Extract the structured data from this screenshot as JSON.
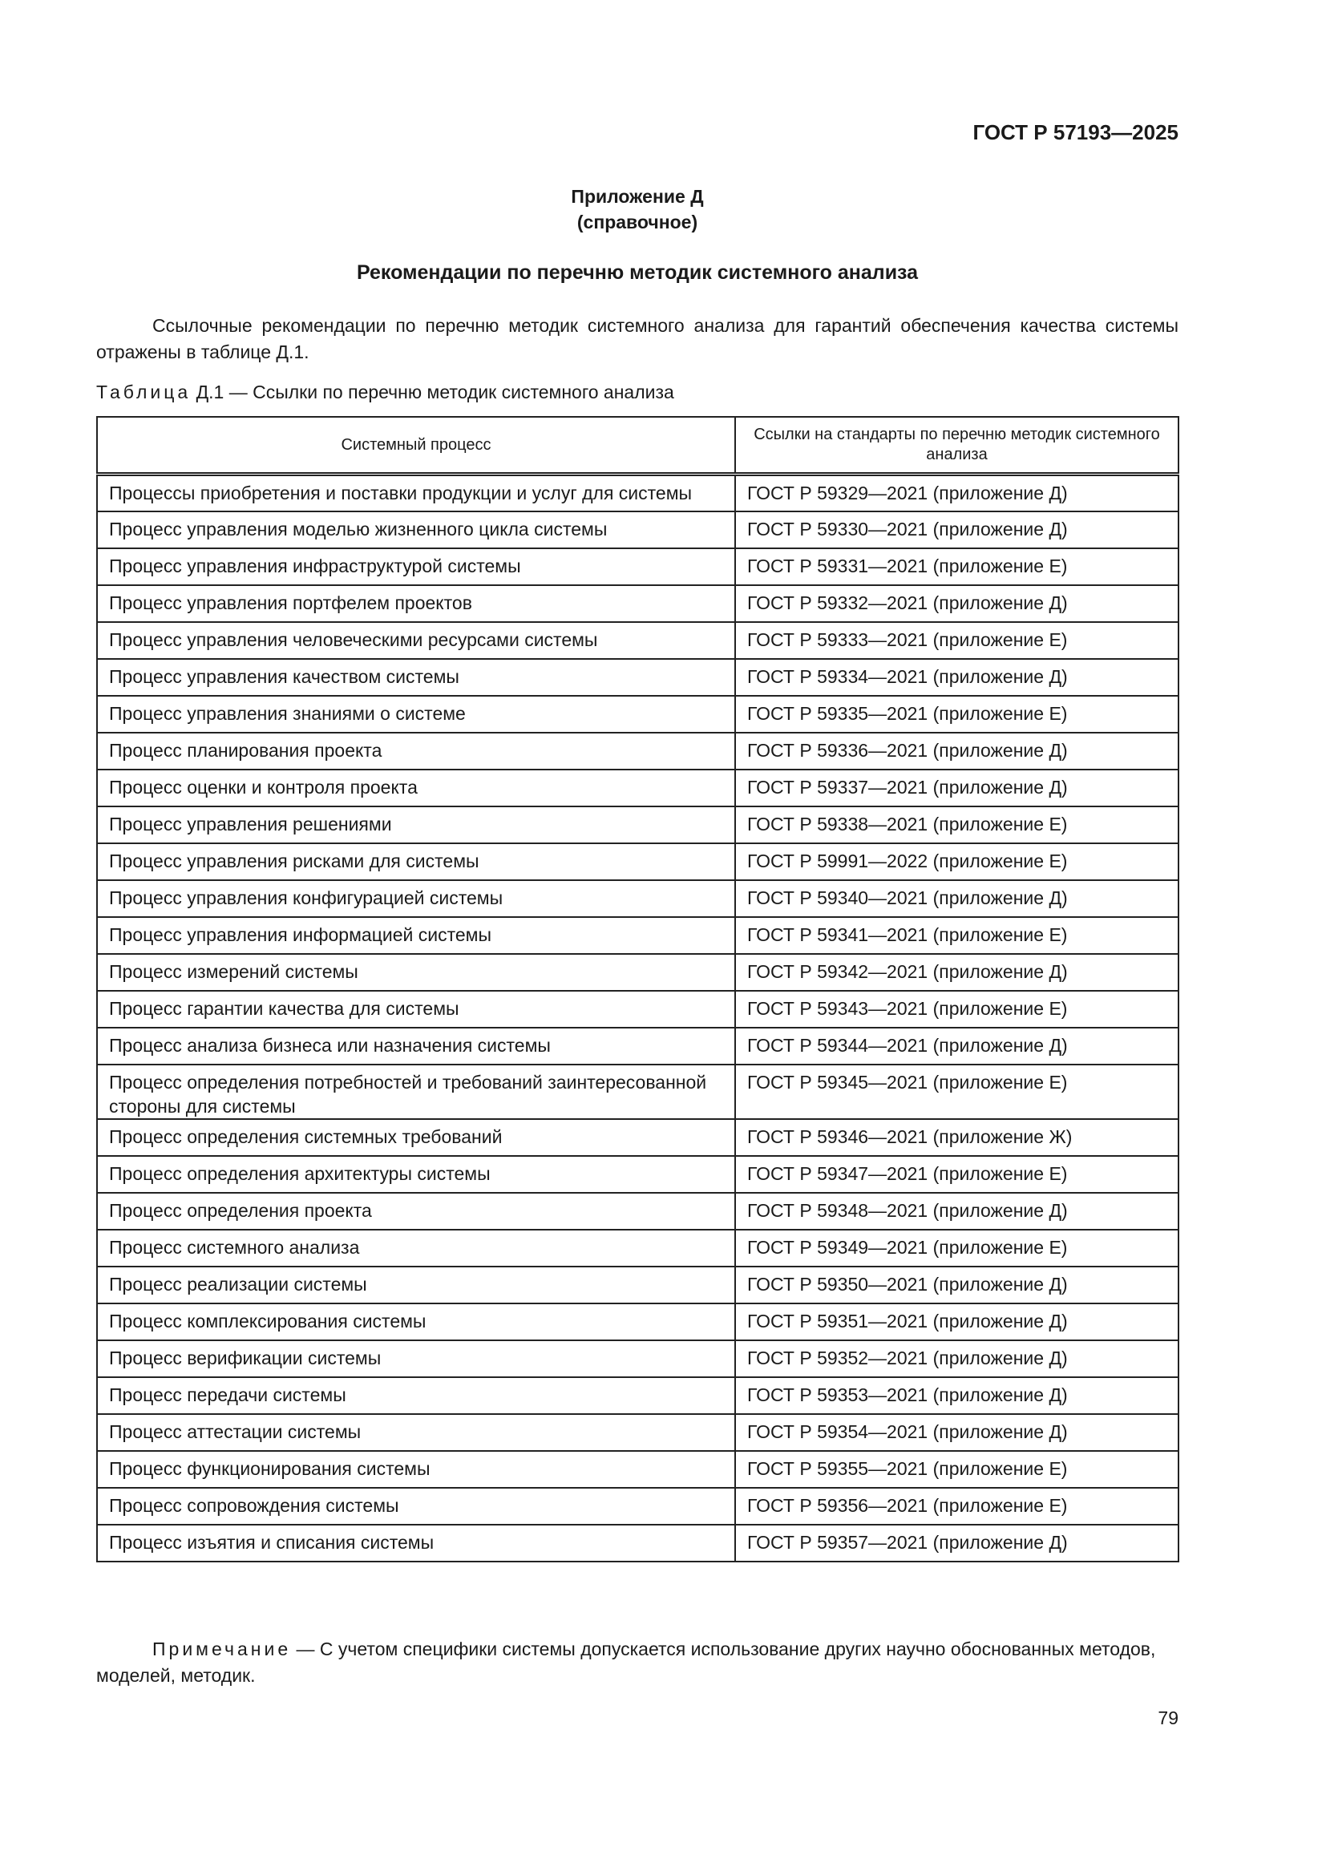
{
  "header": {
    "doc_code": "ГОСТ Р 57193—2025"
  },
  "annex": {
    "label": "Приложение Д",
    "type": "(справочное)"
  },
  "title": "Рекомендации по перечню методик системного анализа",
  "intro": "Ссылочные рекомендации по перечню методик системного анализа для гарантий обеспечения качества системы отражены в таблице Д.1.",
  "table": {
    "caption_prefix": "Таблица",
    "caption_rest": " Д.1 — Ссылки по перечню методик системного анализа",
    "columns": [
      "Системный процесс",
      "Ссылки на стандарты по перечню методик системного анализа"
    ],
    "rows": [
      [
        "Процессы приобретения и поставки продукции и услуг для системы",
        "ГОСТ Р 59329—2021 (приложение Д)"
      ],
      [
        "Процесс управления моделью жизненного цикла системы",
        "ГОСТ Р 59330—2021 (приложение Д)"
      ],
      [
        "Процесс управления инфраструктурой системы",
        "ГОСТ Р 59331—2021 (приложение Е)"
      ],
      [
        "Процесс управления портфелем проектов",
        "ГОСТ Р 59332—2021 (приложение Д)"
      ],
      [
        "Процесс управления человеческими ресурсами системы",
        "ГОСТ Р 59333—2021 (приложение Е)"
      ],
      [
        "Процесс управления качеством системы",
        "ГОСТ Р 59334—2021 (приложение Д)"
      ],
      [
        "Процесс управления знаниями о системе",
        "ГОСТ Р 59335—2021 (приложение Е)"
      ],
      [
        "Процесс планирования проекта",
        "ГОСТ Р 59336—2021 (приложение Д)"
      ],
      [
        "Процесс оценки и контроля проекта",
        "ГОСТ Р 59337—2021 (приложение Д)"
      ],
      [
        "Процесс управления решениями",
        "ГОСТ Р 59338—2021 (приложение Е)"
      ],
      [
        "Процесс управления рисками для системы",
        "ГОСТ Р 59991—2022 (приложение Е)"
      ],
      [
        "Процесс управления конфигурацией системы",
        "ГОСТ Р 59340—2021 (приложение Д)"
      ],
      [
        "Процесс управления информацией системы",
        "ГОСТ Р 59341—2021 (приложение Е)"
      ],
      [
        "Процесс измерений системы",
        "ГОСТ Р 59342—2021 (приложение Д)"
      ],
      [
        "Процесс гарантии качества для системы",
        "ГОСТ Р 59343—2021 (приложение Е)"
      ],
      [
        "Процесс анализа бизнеса или назначения системы",
        "ГОСТ Р 59344—2021 (приложение Д)"
      ],
      [
        "Процесс определения потребностей и требований заинтересованной стороны для системы",
        "ГОСТ Р 59345—2021 (приложение Е)"
      ],
      [
        "Процесс определения системных требований",
        "ГОСТ Р 59346—2021 (приложение Ж)"
      ],
      [
        "Процесс определения архитектуры системы",
        "ГОСТ Р 59347—2021 (приложение Е)"
      ],
      [
        "Процесс определения проекта",
        "ГОСТ Р 59348—2021 (приложение Д)"
      ],
      [
        "Процесс системного анализа",
        "ГОСТ Р 59349—2021 (приложение Е)"
      ],
      [
        "Процесс реализации системы",
        "ГОСТ Р 59350—2021 (приложение Д)"
      ],
      [
        "Процесс комплексирования системы",
        "ГОСТ Р 59351—2021 (приложение Д)"
      ],
      [
        "Процесс верификации системы",
        "ГОСТ Р 59352—2021 (приложение Д)"
      ],
      [
        "Процесс передачи системы",
        "ГОСТ Р 59353—2021 (приложение Д)"
      ],
      [
        "Процесс аттестации системы",
        "ГОСТ Р 59354—2021 (приложение Д)"
      ],
      [
        "Процесс функционирования системы",
        "ГОСТ Р 59355—2021 (приложение Е)"
      ],
      [
        "Процесс сопровождения системы",
        "ГОСТ Р 59356—2021 (приложение Е)"
      ],
      [
        "Процесс изъятия и списания системы",
        "ГОСТ Р 59357—2021 (приложение Д)"
      ]
    ]
  },
  "note": {
    "label": "Примечание",
    "text": " — С учетом специфики системы допускается использование других научно обоснованных методов, моделей, методик."
  },
  "page_number": "79"
}
